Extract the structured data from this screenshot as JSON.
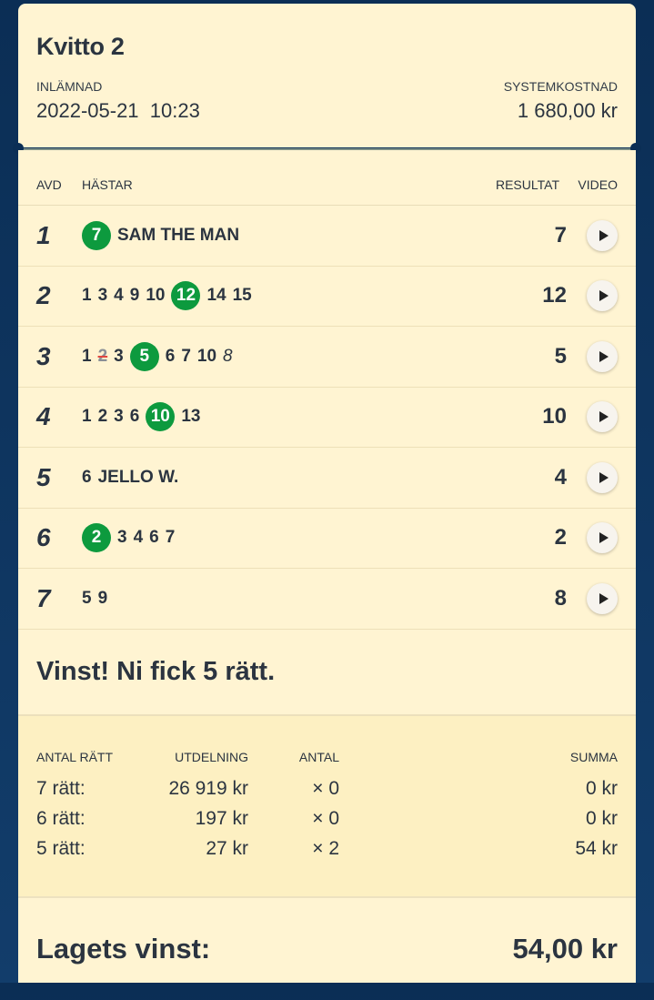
{
  "receipt": {
    "title": "Kvitto 2",
    "submitted_label": "INLÄMNAD",
    "submitted_value": "2022-05-21  10:23",
    "cost_label": "SYSTEMKOSTNAD",
    "cost_value": "1 680,00 kr"
  },
  "table": {
    "headers": {
      "avd": "AVD",
      "horses": "HÄSTAR",
      "result": "RESULTAT",
      "video": "VIDEO"
    },
    "races": [
      {
        "avd": "1",
        "result": "7",
        "horses": [
          {
            "n": "7",
            "win": true
          },
          {
            "n": "SAM THE MAN"
          }
        ]
      },
      {
        "avd": "2",
        "result": "12",
        "horses": [
          {
            "n": "1"
          },
          {
            "n": "3"
          },
          {
            "n": "4"
          },
          {
            "n": "9"
          },
          {
            "n": "10"
          },
          {
            "n": "12",
            "win": true
          },
          {
            "n": "14"
          },
          {
            "n": "15"
          }
        ]
      },
      {
        "avd": "3",
        "result": "5",
        "horses": [
          {
            "n": "1"
          },
          {
            "n": "2",
            "scratched": true
          },
          {
            "n": "3"
          },
          {
            "n": "5",
            "win": true
          },
          {
            "n": "6"
          },
          {
            "n": "7"
          },
          {
            "n": "10"
          },
          {
            "n": "8",
            "reserve": true
          }
        ]
      },
      {
        "avd": "4",
        "result": "10",
        "horses": [
          {
            "n": "1"
          },
          {
            "n": "2"
          },
          {
            "n": "3"
          },
          {
            "n": "6"
          },
          {
            "n": "10",
            "win": true
          },
          {
            "n": "13"
          }
        ]
      },
      {
        "avd": "5",
        "result": "4",
        "horses": [
          {
            "n": "6"
          },
          {
            "n": "JELLO W."
          }
        ]
      },
      {
        "avd": "6",
        "result": "2",
        "horses": [
          {
            "n": "2",
            "win": true
          },
          {
            "n": "3"
          },
          {
            "n": "4"
          },
          {
            "n": "6"
          },
          {
            "n": "7"
          }
        ]
      },
      {
        "avd": "7",
        "result": "8",
        "horses": [
          {
            "n": "5"
          },
          {
            "n": "9"
          }
        ]
      }
    ]
  },
  "message": "Vinst! Ni fick 5 rätt.",
  "payout": {
    "headers": [
      "ANTAL RÄTT",
      "UTDELNING",
      "ANTAL",
      "SUMMA"
    ],
    "rows": [
      [
        "7 rätt:",
        "26 919 kr",
        "× 0",
        "0 kr"
      ],
      [
        "6 rätt:",
        "197 kr",
        "× 0",
        "0 kr"
      ],
      [
        "5 rätt:",
        "27 kr",
        "× 2",
        "54 kr"
      ]
    ]
  },
  "total": {
    "label": "Lagets vinst:",
    "value": "54,00 kr"
  },
  "colors": {
    "win": "#0d9a3e",
    "card": "#fff4d2",
    "background": "#0b2e55"
  }
}
